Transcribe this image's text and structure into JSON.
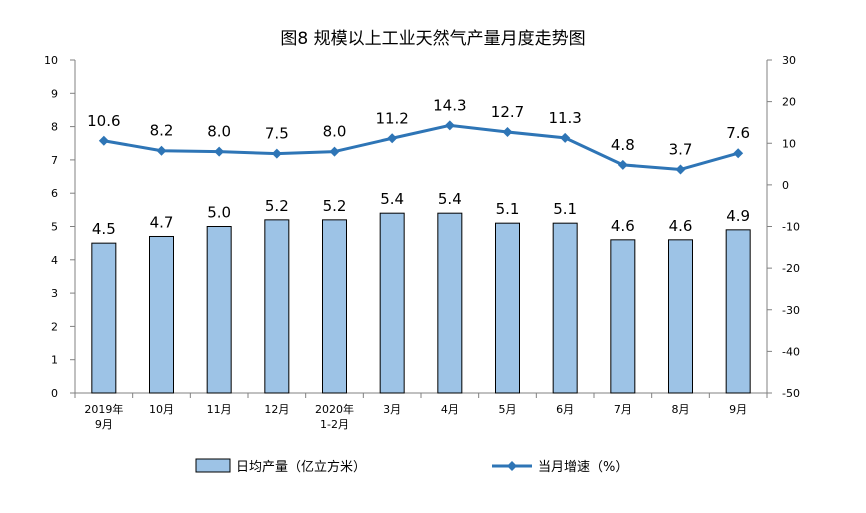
{
  "chart_data": {
    "type": "bar",
    "title": "图8  规模以上工业天然气产量月度走势图",
    "categories": [
      "2019年\n9月",
      "10月",
      "11月",
      "12月",
      "2020年\n1-2月",
      "3月",
      "4月",
      "5月",
      "6月",
      "7月",
      "8月",
      "9月"
    ],
    "series": [
      {
        "name": "日均产量（亿立方米）",
        "type": "bar",
        "axis": "left",
        "color": "#9DC3E6",
        "values": [
          4.5,
          4.7,
          5.0,
          5.2,
          5.2,
          5.4,
          5.4,
          5.1,
          5.1,
          4.6,
          4.6,
          4.9
        ]
      },
      {
        "name": "当月增速（%）",
        "type": "line",
        "axis": "right",
        "color": "#2E75B6",
        "values": [
          10.6,
          8.2,
          8.0,
          7.5,
          8.0,
          11.2,
          14.3,
          12.7,
          11.3,
          4.8,
          3.7,
          7.6
        ]
      }
    ],
    "left_axis": {
      "ylim": [
        0,
        10
      ],
      "ticks": [
        0,
        1,
        2,
        3,
        4,
        5,
        6,
        7,
        8,
        9,
        10
      ]
    },
    "right_axis": {
      "ylim": [
        -50,
        30
      ],
      "ticks": [
        -50,
        -40,
        -30,
        -20,
        -10,
        0,
        10,
        20,
        30
      ]
    },
    "grid": false,
    "legend_position": "bottom"
  }
}
